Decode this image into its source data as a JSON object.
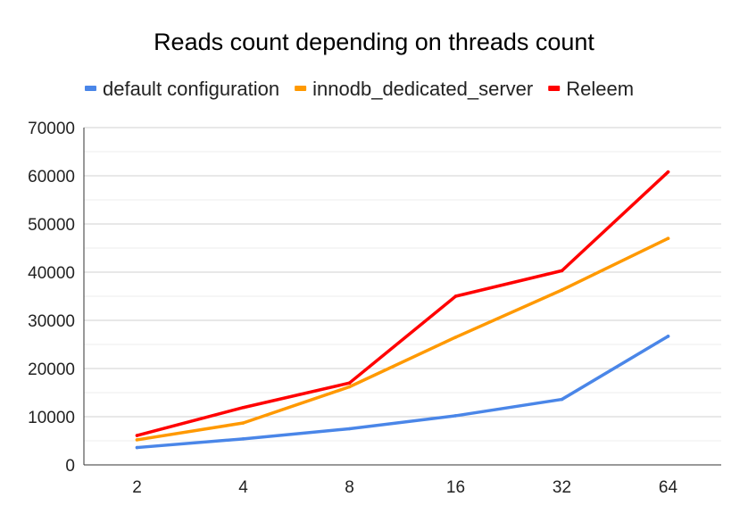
{
  "chart_data": {
    "type": "line",
    "title": "Reads count depending on threads count",
    "xlabel": "",
    "ylabel": "",
    "categories": [
      "2",
      "4",
      "8",
      "16",
      "32",
      "64"
    ],
    "ylim": [
      0,
      70000
    ],
    "yticks": [
      "0",
      "10000",
      "20000",
      "30000",
      "40000",
      "50000",
      "60000",
      "70000"
    ],
    "grid": true,
    "legend_position": "top",
    "series": [
      {
        "name": "default configuration",
        "color": "#4a86e8",
        "values": [
          3600,
          5400,
          7500,
          10200,
          13600,
          26700
        ]
      },
      {
        "name": "innodb_dedicated_server",
        "color": "#ff9900",
        "values": [
          5200,
          8700,
          16200,
          26500,
          36300,
          47000
        ]
      },
      {
        "name": "Releem",
        "color": "#ff0000",
        "values": [
          6100,
          11900,
          17000,
          35000,
          40300,
          60800
        ]
      }
    ]
  }
}
